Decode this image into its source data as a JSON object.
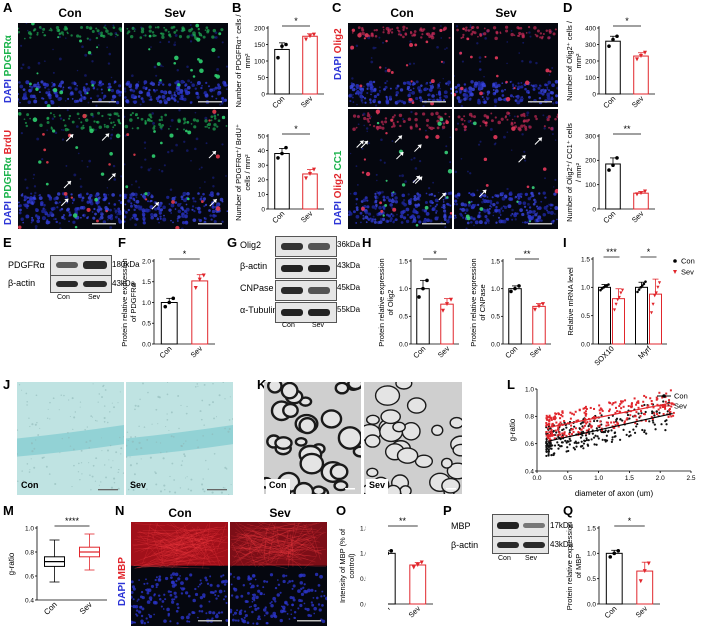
{
  "panels": {
    "A": {
      "letter": "A",
      "con": "Con",
      "sev": "Sev",
      "row1_label": [
        "DAPI",
        " PDGFRα"
      ],
      "row2_label": [
        "DAPI",
        " PDGFRα",
        " BrdU"
      ]
    },
    "B": {
      "letter": "B"
    },
    "C": {
      "letter": "C",
      "con": "Con",
      "sev": "Sev",
      "row1_label": [
        "DAPI",
        " Olig2"
      ],
      "row2_label": [
        "DAPI",
        " Olig2",
        " CC1"
      ]
    },
    "D": {
      "letter": "D"
    },
    "E": {
      "letter": "E",
      "band1": "PDGFRα",
      "band2": "β-actin",
      "kda1": "180kDa",
      "kda2": "43kDa",
      "con": "Con",
      "sev": "Sev"
    },
    "F": {
      "letter": "F"
    },
    "G": {
      "letter": "G",
      "bands": [
        "Olig2",
        "β-actin",
        "CNPase",
        "α-Tubulin"
      ],
      "kdas": [
        "36kDa",
        "43kDa",
        "45kDa",
        "55kDa"
      ],
      "con": "Con",
      "sev": "Sev"
    },
    "H": {
      "letter": "H"
    },
    "I": {
      "letter": "I"
    },
    "J": {
      "letter": "J",
      "con": "Con",
      "sev": "Sev"
    },
    "K": {
      "letter": "K",
      "con": "Con",
      "sev": "Sev"
    },
    "L": {
      "letter": "L"
    },
    "M": {
      "letter": "M"
    },
    "N": {
      "letter": "N",
      "con": "Con",
      "sev": "Sev",
      "label": [
        "DAPI",
        " MBP"
      ]
    },
    "O": {
      "letter": "O"
    },
    "P": {
      "letter": "P",
      "band1": "MBP",
      "band2": "β-actin",
      "kda1": "17kDa",
      "kda2": "43kDa",
      "con": "Con",
      "sev": "Sev"
    },
    "Q": {
      "letter": "Q"
    }
  },
  "colors": {
    "con": "#000000",
    "sev": "#e1262c",
    "dapi": "#1a22a8",
    "green": "#19b24a",
    "red": "#e1262c"
  },
  "chart_data": [
    {
      "id": "B1",
      "type": "bar",
      "categories": [
        "Con",
        "Sev"
      ],
      "values": [
        135,
        175
      ],
      "ylim": [
        0,
        200
      ],
      "yticks": [
        0,
        50,
        100,
        150,
        200
      ],
      "ylabel": "Number of PDGFRα⁺ cells / mm²",
      "sig": "*",
      "points": [
        [
          110,
          145,
          150
        ],
        [
          165,
          175,
          180
        ]
      ]
    },
    {
      "id": "B2",
      "type": "bar",
      "categories": [
        "Con",
        "Sev"
      ],
      "values": [
        38,
        24
      ],
      "ylim": [
        0,
        50
      ],
      "yticks": [
        0,
        10,
        20,
        30,
        40,
        50
      ],
      "ylabel": "Number of PDGFRα⁺/ BrdU⁺ cells / mm²",
      "sig": "*",
      "points": [
        [
          35,
          38,
          42
        ],
        [
          21,
          24,
          27
        ]
      ]
    },
    {
      "id": "D1",
      "type": "bar",
      "categories": [
        "Con",
        "Sev"
      ],
      "values": [
        320,
        230
      ],
      "ylim": [
        0,
        400
      ],
      "yticks": [
        0,
        100,
        200,
        300,
        400
      ],
      "ylabel": "Number of Olig2⁺ cells / mm²",
      "sig": "*",
      "points": [
        [
          290,
          330,
          350
        ],
        [
          210,
          230,
          250
        ]
      ]
    },
    {
      "id": "D2",
      "type": "bar",
      "categories": [
        "Con",
        "Sev"
      ],
      "values": [
        185,
        65
      ],
      "ylim": [
        0,
        300
      ],
      "yticks": [
        0,
        100,
        200,
        300
      ],
      "ylabel": "Number of Olig2⁺/ CC1⁺ cells / mm²",
      "sig": "**",
      "points": [
        [
          160,
          180,
          210
        ],
        [
          60,
          65,
          72
        ]
      ]
    },
    {
      "id": "F",
      "type": "bar",
      "categories": [
        "Con",
        "Sev"
      ],
      "values": [
        1.0,
        1.52
      ],
      "ylim": [
        0,
        2.0
      ],
      "yticks": [
        0.0,
        0.5,
        1.0,
        1.5,
        2.0
      ],
      "ylabel": "Protein relative expression of PDGFRα",
      "sig": "*",
      "points": [
        [
          0.9,
          1.0,
          1.1
        ],
        [
          1.35,
          1.55,
          1.65
        ]
      ]
    },
    {
      "id": "H1",
      "type": "bar",
      "categories": [
        "Con",
        "Sev"
      ],
      "values": [
        1.0,
        0.72
      ],
      "ylim": [
        0,
        1.5
      ],
      "yticks": [
        0.0,
        0.5,
        1.0,
        1.5
      ],
      "ylabel": "Protein relative expression of Olig2",
      "sig": "*",
      "points": [
        [
          0.85,
          1.0,
          1.15
        ],
        [
          0.6,
          0.72,
          0.8
        ]
      ]
    },
    {
      "id": "H2",
      "type": "bar",
      "categories": [
        "Con",
        "Sev"
      ],
      "values": [
        1.0,
        0.68
      ],
      "ylim": [
        0,
        1.5
      ],
      "yticks": [
        0.0,
        0.5,
        1.0,
        1.5
      ],
      "ylabel": "Protein relative expression of CNPase",
      "sig": "**",
      "points": [
        [
          0.95,
          1.0,
          1.05
        ],
        [
          0.62,
          0.68,
          0.72
        ]
      ]
    },
    {
      "id": "I",
      "type": "bar",
      "categories": [
        "SOX10",
        "Myrf"
      ],
      "series": [
        {
          "name": "Con",
          "values": [
            1.0,
            1.0
          ]
        },
        {
          "name": "Sev",
          "values": [
            0.8,
            0.88
          ]
        }
      ],
      "ylim": [
        0,
        1.5
      ],
      "yticks": [
        0.0,
        0.5,
        1.0,
        1.5
      ],
      "ylabel": "Relative mRNA level",
      "sig": [
        "***",
        "*"
      ],
      "points": [
        [
          [
            0.95,
            0.98,
            1.0,
            1.02,
            1.03,
            1.05
          ],
          [
            0.6,
            0.7,
            0.78,
            0.82,
            0.9,
            0.95
          ]
        ],
        [
          [
            0.92,
            0.96,
            1.0,
            1.03,
            1.06,
            1.1
          ],
          [
            0.55,
            0.7,
            0.85,
            0.9,
            1.0,
            1.08
          ]
        ]
      ]
    },
    {
      "id": "L",
      "type": "scatter",
      "xlabel": "diameter of axon (um)",
      "ylabel": "g-ratio",
      "xlim": [
        0,
        2.5
      ],
      "ylim": [
        0.4,
        1.0
      ],
      "xticks": [
        0.0,
        0.5,
        1.0,
        1.5,
        2.0,
        2.5
      ],
      "yticks": [
        0.4,
        0.6,
        0.8,
        1.0
      ],
      "series": [
        {
          "name": "Con",
          "fit": [
            [
              0.2,
              0.62
            ],
            [
              2.2,
              0.82
            ]
          ]
        },
        {
          "name": "Sev",
          "fit": [
            [
              0.2,
              0.72
            ],
            [
              2.2,
              0.9
            ]
          ]
        }
      ]
    },
    {
      "id": "M",
      "type": "box",
      "categories": [
        "Con",
        "Sev"
      ],
      "ylabel": "g-ratio",
      "ylim": [
        0.4,
        1.0
      ],
      "yticks": [
        0.4,
        0.6,
        0.8,
        1.0
      ],
      "sig": "****",
      "boxes": [
        {
          "min": 0.55,
          "q1": 0.68,
          "median": 0.72,
          "q3": 0.76,
          "max": 0.9
        },
        {
          "min": 0.65,
          "q1": 0.76,
          "median": 0.8,
          "q3": 0.84,
          "max": 0.95
        }
      ]
    },
    {
      "id": "O",
      "type": "bar",
      "categories": [
        "Con",
        "Sev"
      ],
      "values": [
        1.0,
        0.77
      ],
      "ylim": [
        0,
        1.5
      ],
      "yticks": [
        0.0,
        0.5,
        1.0,
        1.5
      ],
      "ylabel": "Intensity of MBP (% of control)",
      "sig": "**",
      "points": [
        [
          0.95,
          1.0,
          1.05
        ],
        [
          0.72,
          0.77,
          0.82
        ]
      ]
    },
    {
      "id": "Q",
      "type": "bar",
      "categories": [
        "Con",
        "Sev"
      ],
      "values": [
        1.0,
        0.65
      ],
      "ylim": [
        0,
        1.5
      ],
      "yticks": [
        0.0,
        0.5,
        1.0,
        1.5
      ],
      "ylabel": "Protein relative expression of MBP",
      "sig": "*",
      "points": [
        [
          0.93,
          1.0,
          1.05
        ],
        [
          0.45,
          0.65,
          0.8
        ]
      ]
    }
  ]
}
